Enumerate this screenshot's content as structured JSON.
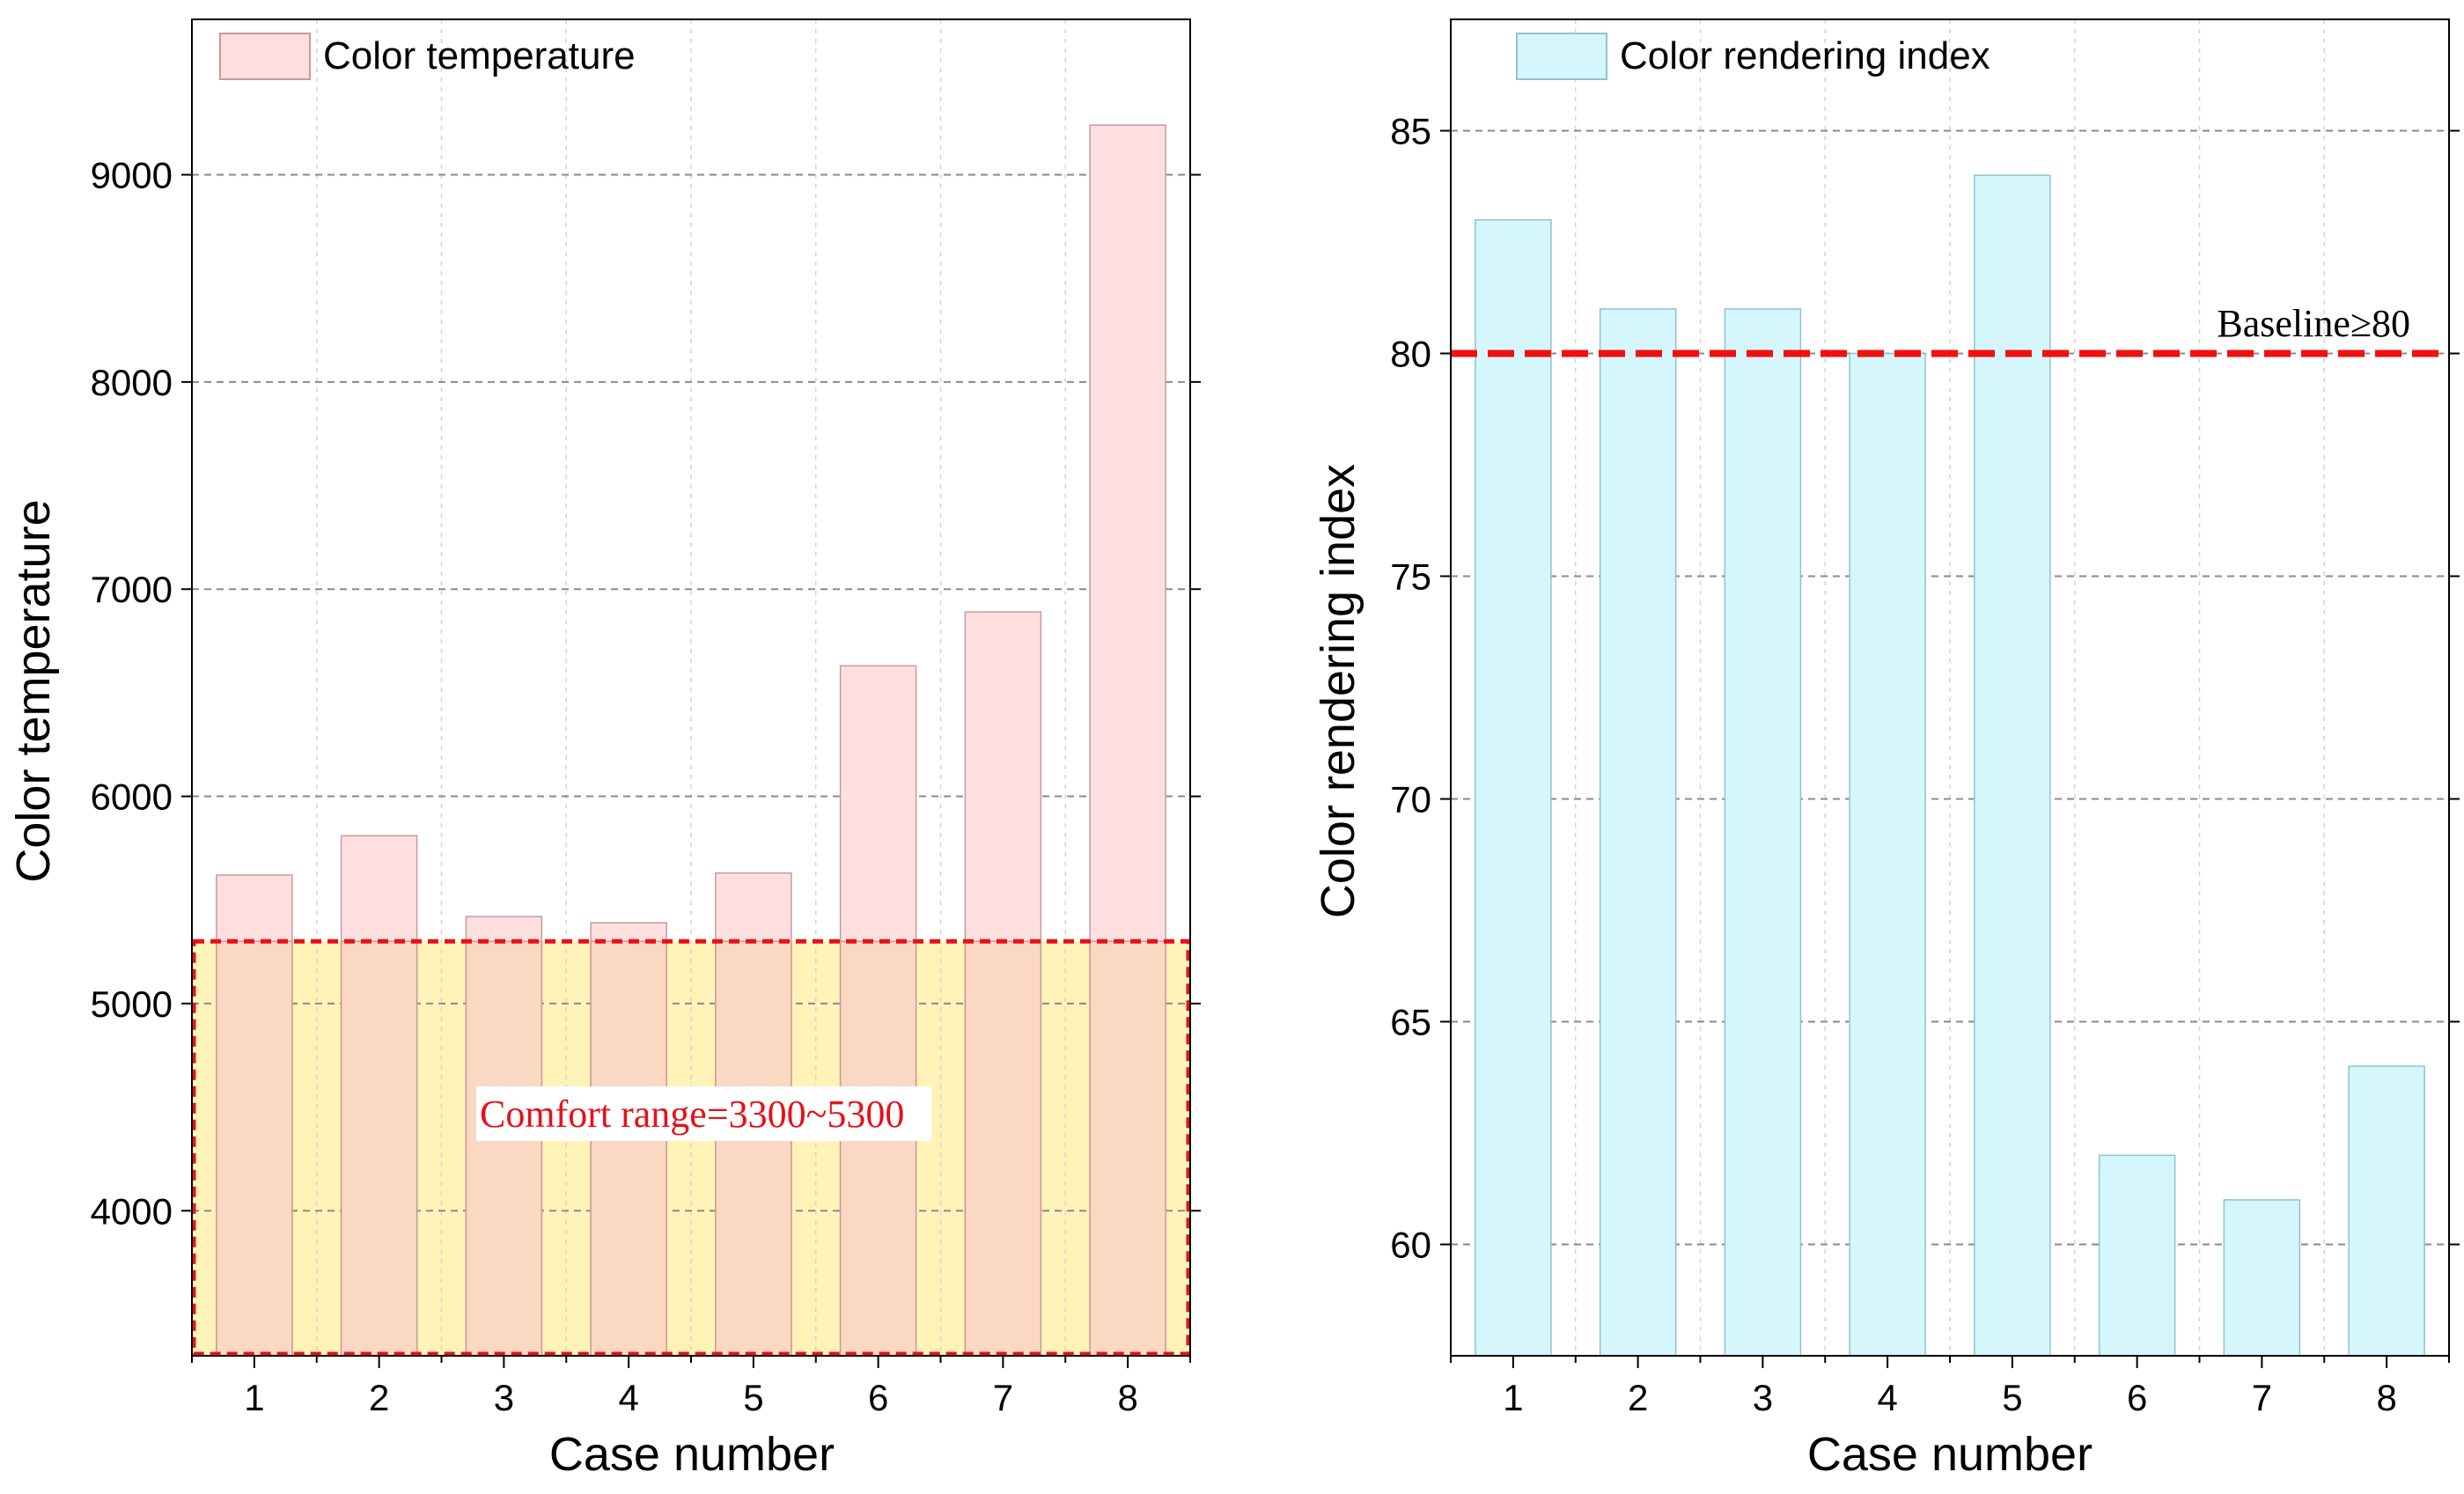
{
  "chart_data": [
    {
      "type": "bar",
      "title": "",
      "xlabel": "Case number",
      "ylabel": "Color temperature",
      "categories": [
        "1",
        "2",
        "3",
        "4",
        "5",
        "6",
        "7",
        "8"
      ],
      "series": [
        {
          "name": "Color temperature",
          "values": [
            5620,
            5810,
            5420,
            5390,
            5630,
            6630,
            6890,
            9240
          ]
        }
      ],
      "ylim": [
        3300,
        9750
      ],
      "yticks": [
        4000,
        5000,
        6000,
        7000,
        8000,
        9000
      ],
      "grid": true,
      "legend": "top-left",
      "colors": {
        "bar_fill": "#ffdfe0",
        "bar_stroke": "#c89a9a",
        "band_fill": "#fff3b8",
        "band_border": "#e8101a",
        "overlap_fill": "#fbd8c2"
      },
      "comfort_range": {
        "min": 3300,
        "max": 5300,
        "label": "Comfort range=3300~5300"
      }
    },
    {
      "type": "bar",
      "title": "",
      "xlabel": "Case number",
      "ylabel": "Color rendering index",
      "categories": [
        "1",
        "2",
        "3",
        "4",
        "5",
        "6",
        "7",
        "8"
      ],
      "series": [
        {
          "name": "Color rendering index",
          "values": [
            83,
            81,
            81,
            80,
            84,
            62,
            61,
            64
          ]
        }
      ],
      "ylim": [
        57.5,
        87.5
      ],
      "yticks": [
        60,
        65,
        70,
        75,
        80,
        85
      ],
      "grid": true,
      "legend": "top-left",
      "colors": {
        "bar_fill": "#d5f6fc",
        "bar_stroke": "#8fc3cc",
        "baseline": "#f01010"
      },
      "baseline": {
        "value": 80,
        "label": "Baseline≥80"
      }
    }
  ]
}
